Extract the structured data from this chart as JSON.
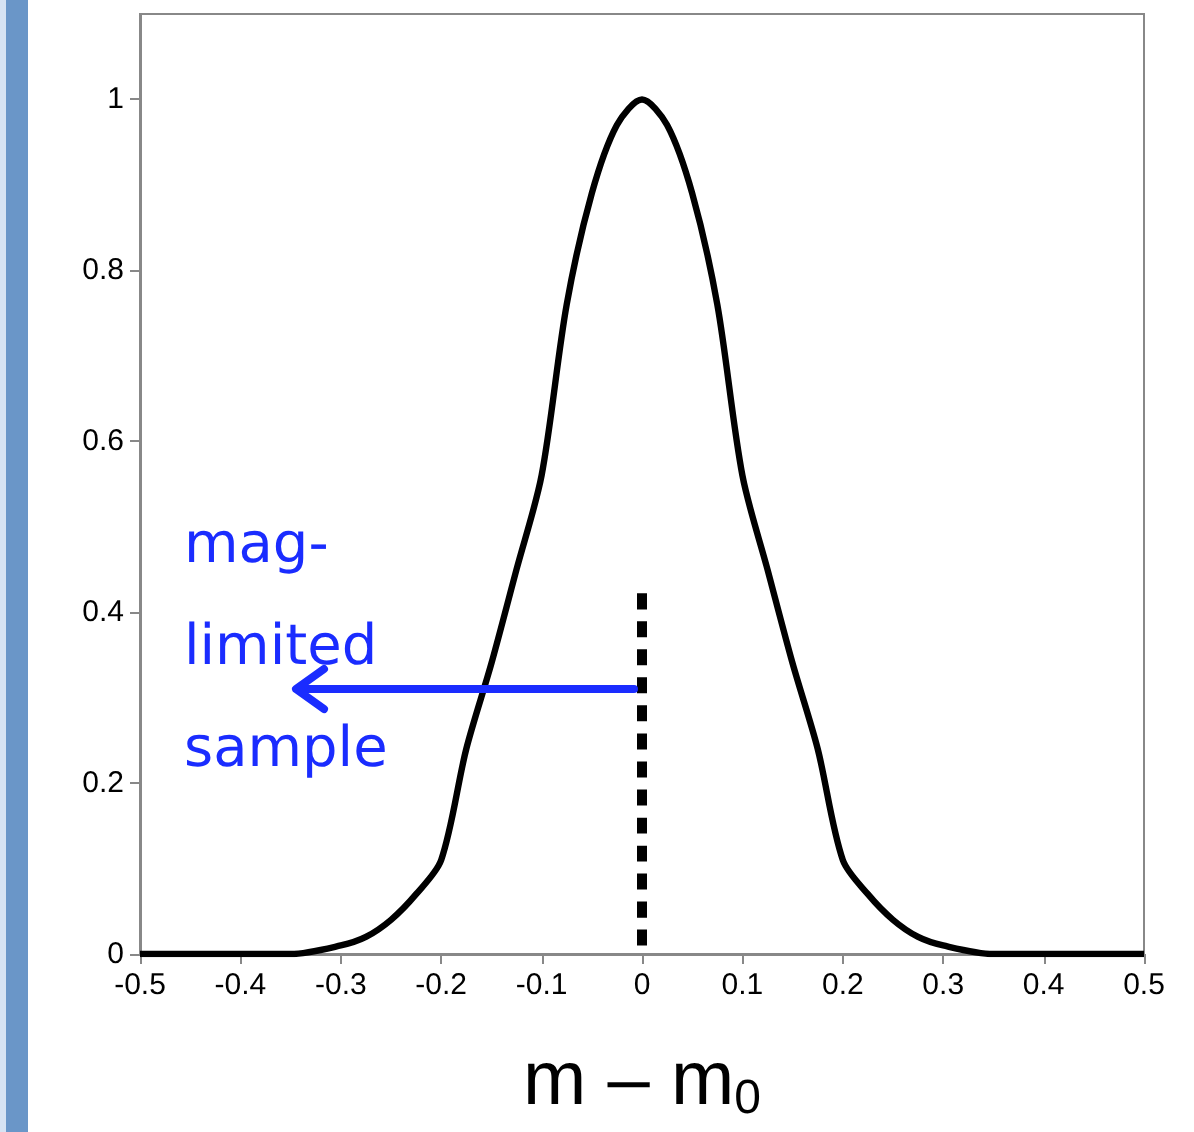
{
  "chart_data": {
    "type": "line",
    "xlabel": "m – m$_{0}$",
    "x": [
      -0.5,
      -0.4,
      -0.35,
      -0.3,
      -0.275,
      -0.25,
      -0.225,
      -0.2,
      -0.175,
      -0.15,
      -0.125,
      -0.1,
      -0.075,
      -0.05,
      -0.025,
      0,
      0.025,
      0.05,
      0.075,
      0.1,
      0.125,
      0.15,
      0.175,
      0.2,
      0.225,
      0.25,
      0.275,
      0.3,
      0.35,
      0.4,
      0.5
    ],
    "series": [
      {
        "color": "#000000",
        "line_style": "solid",
        "values": [
          0,
          0,
          0,
          0.01,
          0.02,
          0.04,
          0.07,
          0.11,
          0.24,
          0.34,
          0.45,
          0.56,
          0.76,
          0.89,
          0.97,
          1,
          0.97,
          0.89,
          0.76,
          0.56,
          0.45,
          0.34,
          0.24,
          0.11,
          0.07,
          0.04,
          0.02,
          0.01,
          0,
          0,
          0
        ]
      },
      {
        "color": "#000000",
        "line_style": "dashed",
        "x": [
          0,
          0
        ],
        "values": [
          0.01,
          0.43
        ]
      }
    ],
    "annotations": [
      {
        "text": "mag-\nlimited\nsample",
        "x": 0,
        "y": 0.31
      }
    ],
    "xlim": [
      -0.5,
      0.5
    ],
    "ylim": [
      0,
      1.1
    ],
    "xticks": [
      -0.5,
      -0.4,
      -0.3,
      -0.2,
      -0.1,
      0,
      0.1,
      0.2,
      0.3,
      0.4,
      0.5
    ],
    "yticks": [
      0,
      0.2,
      0.4,
      0.6,
      0.8,
      1
    ],
    "grid": false,
    "marker": "none"
  }
}
